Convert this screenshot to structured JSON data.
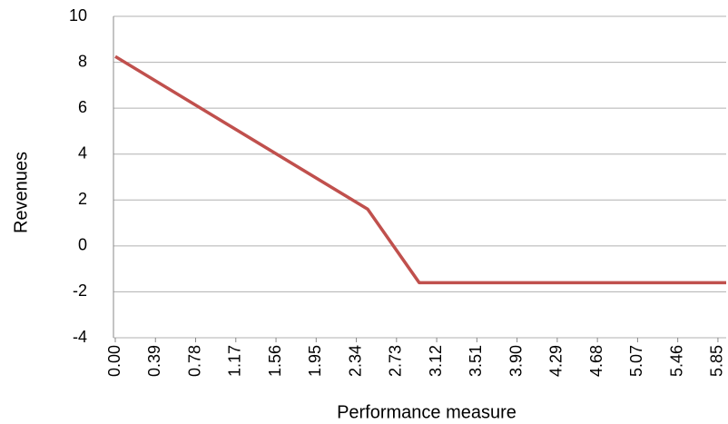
{
  "chart_data": {
    "type": "line",
    "x_label": "Performance measure",
    "y_label": "Revenues",
    "x": [
      0,
      2.45,
      2.95,
      5.93
    ],
    "series": [
      {
        "name": "Revenues",
        "color": "#c0504d",
        "values": [
          8.25,
          1.6,
          -1.6,
          -1.6
        ]
      }
    ],
    "xlim": [
      0,
      5.93
    ],
    "xticks": [
      {
        "value": 0,
        "label": "0.00"
      },
      0.39,
      0.78,
      1.17,
      1.56,
      1.95,
      2.34,
      2.73,
      3.12,
      3.51,
      {
        "value": 3.9,
        "label": "3.90"
      },
      4.29,
      4.68,
      5.07,
      5.46,
      5.85
    ],
    "ylim": [
      -4,
      10
    ],
    "yticks": [
      -4,
      -2,
      0,
      2,
      4,
      6,
      8,
      10
    ],
    "grid": true
  }
}
